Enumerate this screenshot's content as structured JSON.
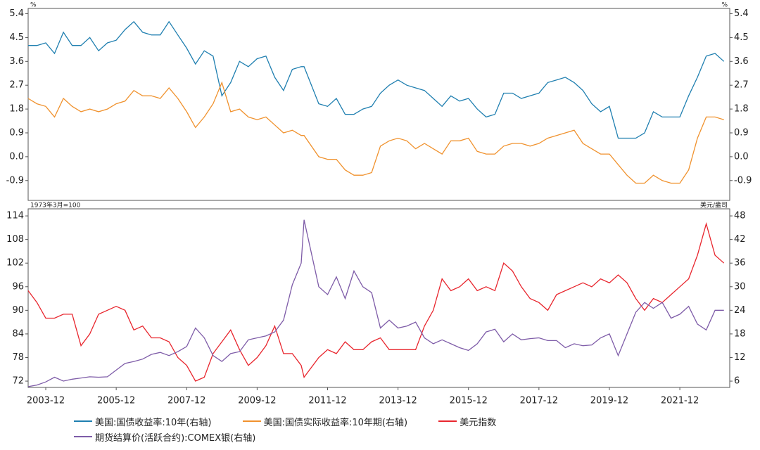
{
  "chart_data": [
    {
      "type": "line",
      "y_label": "%",
      "y2_label": "%",
      "xlim": [
        "2003-06",
        "2023-05"
      ],
      "ylim": [
        -1.65,
        5.6
      ],
      "yticks": [
        5.4,
        4.5,
        3.6,
        2.7,
        1.8,
        0.9,
        {
          "value": 0,
          "label": "0.0"
        },
        -0.9
      ],
      "y2lim": [
        -1.65,
        5.6
      ],
      "y2ticks": [
        5.4,
        4.5,
        3.6,
        2.7,
        1.8,
        0.9,
        {
          "value": 0,
          "label": "0.0"
        },
        -0.9
      ],
      "x": [
        "2003-06",
        "2003-09",
        "2003-12",
        "2004-03",
        "2004-06",
        "2004-09",
        "2004-12",
        "2005-03",
        "2005-06",
        "2005-09",
        "2005-12",
        "2006-03",
        "2006-06",
        "2006-09",
        "2006-12",
        "2007-03",
        "2007-06",
        "2007-09",
        "2007-12",
        "2008-03",
        "2008-06",
        "2008-09",
        "2008-12",
        "2009-03",
        "2009-06",
        "2009-09",
        "2009-12",
        "2010-03",
        "2010-06",
        "2010-09",
        "2010-12",
        "2011-03",
        "2011-04",
        "2011-09",
        "2011-12",
        "2012-03",
        "2012-06",
        "2012-09",
        "2012-12",
        "2013-03",
        "2013-06",
        "2013-09",
        "2013-12",
        "2014-03",
        "2014-06",
        "2014-09",
        "2014-12",
        "2015-03",
        "2015-06",
        "2015-09",
        "2015-12",
        "2016-03",
        "2016-06",
        "2016-09",
        "2016-12",
        "2017-03",
        "2017-06",
        "2017-09",
        "2017-12",
        "2018-03",
        "2018-06",
        "2018-09",
        "2018-12",
        "2019-03",
        "2019-06",
        "2019-09",
        "2019-12",
        "2020-03",
        "2020-06",
        "2020-09",
        "2020-12",
        "2021-03",
        "2021-06",
        "2021-09",
        "2021-12",
        "2022-03",
        "2022-06",
        "2022-09",
        "2022-12",
        "2023-03"
      ],
      "series": [
        {
          "name": "美国:国债收益率:10年(右轴)",
          "color": "#1f7fb0",
          "axis": "y2",
          "values": [
            4.2,
            4.2,
            4.3,
            3.9,
            4.7,
            4.2,
            4.2,
            4.5,
            4.0,
            4.3,
            4.4,
            4.8,
            5.1,
            4.7,
            4.6,
            4.6,
            5.1,
            4.6,
            4.1,
            3.5,
            4.0,
            3.8,
            2.3,
            2.8,
            3.6,
            3.4,
            3.7,
            3.8,
            3.0,
            2.5,
            3.3,
            3.4,
            3.4,
            2.0,
            1.9,
            2.2,
            1.6,
            1.6,
            1.8,
            1.9,
            2.4,
            2.7,
            2.9,
            2.7,
            2.6,
            2.5,
            2.2,
            1.9,
            2.3,
            2.1,
            2.2,
            1.8,
            1.5,
            1.6,
            2.4,
            2.4,
            2.2,
            2.3,
            2.4,
            2.8,
            2.9,
            3.0,
            2.8,
            2.5,
            2.0,
            1.7,
            1.9,
            0.7,
            0.7,
            0.7,
            0.9,
            1.7,
            1.5,
            1.5,
            1.5,
            2.3,
            3.0,
            3.8,
            3.9,
            3.6
          ]
        },
        {
          "name": "美国:国债实际收益率:10年期(右轴)",
          "color": "#f0922e",
          "axis": "y2",
          "values": [
            2.2,
            2.0,
            1.9,
            1.5,
            2.2,
            1.9,
            1.7,
            1.8,
            1.7,
            1.8,
            2.0,
            2.1,
            2.5,
            2.3,
            2.3,
            2.2,
            2.6,
            2.2,
            1.7,
            1.1,
            1.5,
            2.0,
            2.8,
            1.7,
            1.8,
            1.5,
            1.4,
            1.5,
            1.2,
            0.9,
            1.0,
            0.8,
            0.8,
            0.0,
            -0.1,
            -0.1,
            -0.5,
            -0.7,
            -0.7,
            -0.6,
            0.4,
            0.6,
            0.7,
            0.6,
            0.3,
            0.5,
            0.3,
            0.1,
            0.6,
            0.6,
            0.7,
            0.2,
            0.1,
            0.1,
            0.4,
            0.5,
            0.5,
            0.4,
            0.5,
            0.7,
            0.8,
            0.9,
            1.0,
            0.5,
            0.3,
            0.1,
            0.1,
            -0.3,
            -0.7,
            -1.0,
            -1.0,
            -0.7,
            -0.9,
            -1.0,
            -1.0,
            -0.5,
            0.7,
            1.5,
            1.5,
            1.4
          ]
        }
      ]
    },
    {
      "type": "line",
      "y_label": "1973年3月=100",
      "y2_label": "美元/盎司",
      "xlim": [
        "2003-06",
        "2023-05"
      ],
      "xticks": [
        "2003-12",
        "2005-12",
        "2007-12",
        "2009-12",
        "2011-12",
        "2013-12",
        "2015-12",
        "2017-12",
        "2019-12",
        "2021-12"
      ],
      "ylim": [
        70.4,
        115.8
      ],
      "yticks": [
        114,
        108,
        102,
        96,
        90,
        84,
        78,
        72
      ],
      "y2lim": [
        4.4,
        49.8
      ],
      "y2ticks": [
        48,
        42,
        36,
        30,
        24,
        18,
        12,
        6
      ],
      "x": [
        "2003-06",
        "2003-09",
        "2003-12",
        "2004-03",
        "2004-06",
        "2004-09",
        "2004-12",
        "2005-03",
        "2005-06",
        "2005-09",
        "2005-12",
        "2006-03",
        "2006-06",
        "2006-09",
        "2006-12",
        "2007-03",
        "2007-06",
        "2007-09",
        "2007-12",
        "2008-03",
        "2008-06",
        "2008-09",
        "2008-12",
        "2009-03",
        "2009-06",
        "2009-09",
        "2009-12",
        "2010-03",
        "2010-06",
        "2010-09",
        "2010-12",
        "2011-03",
        "2011-04",
        "2011-09",
        "2011-12",
        "2012-03",
        "2012-06",
        "2012-09",
        "2012-12",
        "2013-03",
        "2013-06",
        "2013-09",
        "2013-12",
        "2014-03",
        "2014-06",
        "2014-09",
        "2014-12",
        "2015-03",
        "2015-06",
        "2015-09",
        "2015-12",
        "2016-03",
        "2016-06",
        "2016-09",
        "2016-12",
        "2017-03",
        "2017-06",
        "2017-09",
        "2017-12",
        "2018-03",
        "2018-06",
        "2018-09",
        "2018-12",
        "2019-03",
        "2019-06",
        "2019-09",
        "2019-12",
        "2020-03",
        "2020-06",
        "2020-09",
        "2020-12",
        "2021-03",
        "2021-06",
        "2021-09",
        "2021-12",
        "2022-03",
        "2022-06",
        "2022-09",
        "2022-12",
        "2023-03"
      ],
      "series": [
        {
          "name": "美元指数",
          "color": "#e8262e",
          "axis": "y",
          "values": [
            95,
            92,
            88,
            88,
            89,
            89,
            81,
            84,
            89,
            90,
            91,
            90,
            85,
            86,
            83,
            83,
            82,
            78,
            76,
            72,
            73,
            79,
            82,
            85,
            80,
            76,
            78,
            81,
            86,
            79,
            79,
            76,
            73,
            78,
            80,
            79,
            82,
            80,
            80,
            82,
            83,
            80,
            80,
            80,
            80,
            86,
            90,
            98,
            95,
            96,
            98,
            95,
            96,
            95,
            102,
            100,
            96,
            93,
            92,
            90,
            94,
            95,
            96,
            97,
            96,
            98,
            97,
            99,
            97,
            93,
            90,
            93,
            92,
            94,
            96,
            98,
            104,
            112,
            104,
            102
          ]
        },
        {
          "name": "期货结算价(活跃合约):COMEX银(右轴)",
          "color": "#7e5ca8",
          "axis": "y2",
          "values": [
            4.6,
            5.0,
            5.8,
            7.0,
            6.0,
            6.5,
            6.8,
            7.1,
            7.0,
            7.1,
            8.8,
            10.5,
            11.0,
            11.6,
            12.8,
            13.3,
            12.5,
            13.5,
            14.8,
            19.5,
            17.0,
            12.5,
            11.0,
            13.0,
            13.5,
            16.5,
            17.0,
            17.5,
            18.5,
            21.5,
            30.5,
            36.0,
            47.0,
            30.0,
            28.0,
            32.5,
            27.0,
            34.0,
            30.0,
            28.5,
            19.5,
            21.5,
            19.5,
            20.0,
            21.0,
            17.0,
            15.5,
            16.5,
            15.5,
            14.5,
            13.8,
            15.5,
            18.5,
            19.2,
            16.0,
            18.0,
            16.5,
            16.8,
            17.0,
            16.3,
            16.3,
            14.5,
            15.5,
            15.0,
            15.2,
            17.0,
            18.0,
            12.5,
            18.0,
            23.5,
            26.0,
            24.5,
            26.0,
            22.0,
            23.0,
            25.0,
            20.5,
            19.0,
            24.0,
            24.0
          ]
        }
      ]
    }
  ]
}
